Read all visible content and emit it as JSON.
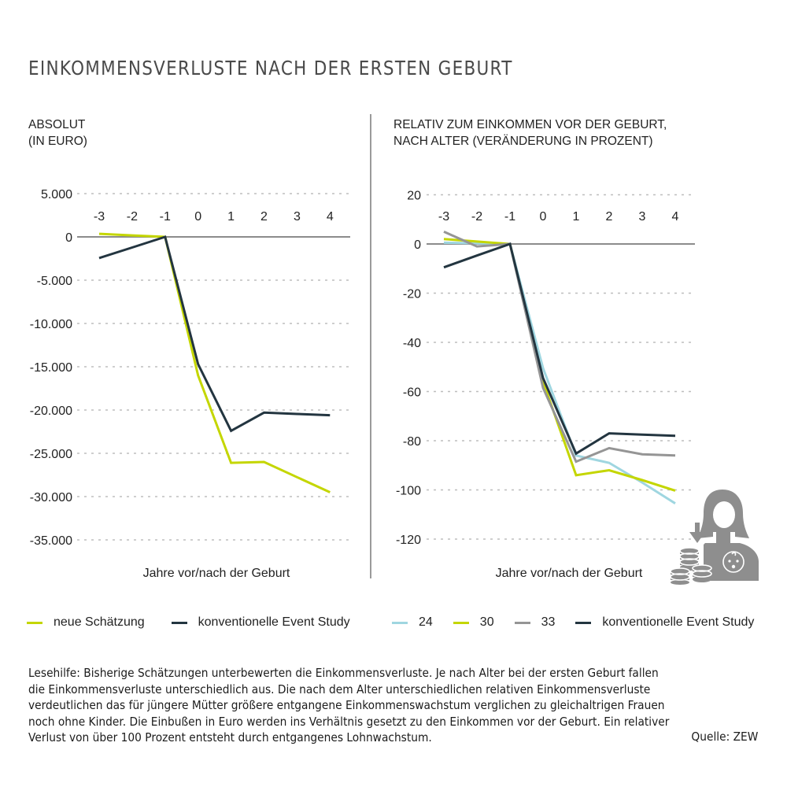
{
  "title": "EINKOMMENSVERLUSTE NACH DER ERSTEN GEBURT",
  "colors": {
    "neue_schaetzung": "#c4d600",
    "konventionell": "#233540",
    "age_24": "#9fd6e0",
    "age_30": "#c4d600",
    "age_33": "#959595",
    "zero_line": "#8c8c8c",
    "grid": "#bdbdbd",
    "icon": "#8e8e8e"
  },
  "chart_data": [
    {
      "type": "line",
      "title": "ABSOLUT",
      "subtitle": "(IN EURO)",
      "xlabel": "Jahre vor/nach der Geburt",
      "ylabel": "",
      "x": [
        -3,
        -2,
        -1,
        0,
        1,
        2,
        3,
        4
      ],
      "x_tick_labels": [
        "-3",
        "-2",
        "-1",
        "0",
        "1",
        "2",
        "3",
        "4"
      ],
      "ylim": [
        -35000,
        5000
      ],
      "y_ticks": [
        5000,
        0,
        -5000,
        -10000,
        -15000,
        -20000,
        -25000,
        -30000,
        -35000
      ],
      "y_tick_labels": [
        "5.000",
        "0",
        "-5.000",
        "-10.000",
        "-15.000",
        "-20.000",
        "-25.000",
        "-30.000",
        "-35.000"
      ],
      "grid": true,
      "series": [
        {
          "name": "neue Schätzung",
          "color_key": "neue_schaetzung",
          "values": [
            350,
            175,
            0,
            -16000,
            -26100,
            -26000,
            -27750,
            -29500
          ]
        },
        {
          "name": "konventionelle Event Study",
          "color_key": "konventionell",
          "values": [
            -2450,
            -1225,
            0,
            -14700,
            -22400,
            -20300,
            -20450,
            -20600
          ]
        }
      ]
    },
    {
      "type": "line",
      "title": "RELATIV ZUM EINKOMMEN VOR DER GEBURT,",
      "subtitle": "NACH ALTER (VERÄNDERUNG IN PROZENT)",
      "xlabel": "Jahre vor/nach der Geburt",
      "ylabel": "",
      "x": [
        -3,
        -2,
        -1,
        0,
        1,
        2,
        3,
        4
      ],
      "x_tick_labels": [
        "-3",
        "-2",
        "-1",
        "0",
        "1",
        "2",
        "3",
        "4"
      ],
      "ylim": [
        -120,
        20
      ],
      "y_ticks": [
        20,
        0,
        -20,
        -40,
        -60,
        -80,
        -100,
        -120
      ],
      "y_tick_labels": [
        "20",
        "0",
        "-20",
        "-40",
        "-60",
        "-80",
        "-100",
        "-120"
      ],
      "grid": true,
      "series": [
        {
          "name": "24",
          "color_key": "age_24",
          "values": [
            0.5,
            0.3,
            0,
            -50.5,
            -86,
            -89,
            -97,
            -105.5
          ]
        },
        {
          "name": "30",
          "color_key": "age_30",
          "values": [
            2,
            1,
            0,
            -56,
            -94,
            -92,
            -96,
            -100.3
          ]
        },
        {
          "name": "33",
          "color_key": "age_33",
          "values": [
            5,
            -1,
            0,
            -58.5,
            -88.5,
            -83,
            -85.5,
            -86
          ]
        },
        {
          "name": "konventionelle Event Study",
          "color_key": "konventionell",
          "values": [
            -9.5,
            -4.7,
            0,
            -54.5,
            -85.2,
            -77,
            -77.5,
            -78
          ]
        }
      ]
    }
  ],
  "legend_left": [
    {
      "label": "neue Schätzung",
      "color_key": "neue_schaetzung"
    },
    {
      "label": "konventionelle Event Study",
      "color_key": "konventionell"
    }
  ],
  "legend_right": [
    {
      "label": "24",
      "color_key": "age_24"
    },
    {
      "label": "30",
      "color_key": "age_30"
    },
    {
      "label": "33",
      "color_key": "age_33"
    },
    {
      "label": "konventionelle Event Study",
      "color_key": "konventionell"
    }
  ],
  "note_lines": [
    "Lesehilfe: Bisherige Schätzungen unterbewerten die Einkommensverluste. Je nach Alter bei der ersten Geburt fallen",
    "die Einkommensverluste unterschiedlich aus. Die nach dem Alter unterschiedlichen relativen Einkommensverluste",
    "verdeutlichen das für jüngere Mütter größere entgangene Einkommenswachstum verglichen zu gleichaltrigen Frauen",
    "noch ohne Kinder. Die Einbußen in Euro werden ins Verhältnis gesetzt zu den Einkommen vor der Geburt. Ein relativer",
    "Verlust von über 100 Prozent entsteht durch entgangenes Lohnwachstum."
  ],
  "source": "Quelle: ZEW",
  "icon": "mother-with-baby-and-coins-icon"
}
